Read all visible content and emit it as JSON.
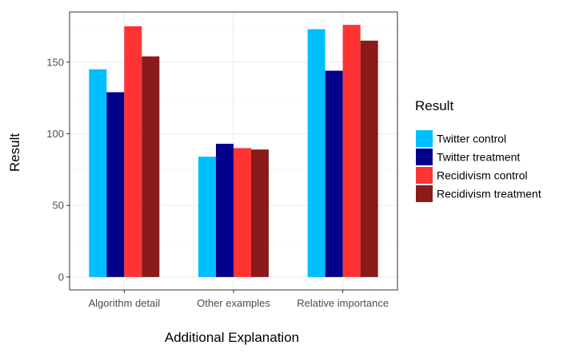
{
  "chart_data": {
    "type": "bar",
    "categories": [
      "Algorithm detail",
      "Other examples",
      "Relative importance"
    ],
    "series": [
      {
        "name": "Twitter control",
        "values": [
          145,
          84,
          173
        ]
      },
      {
        "name": "Twitter treatment",
        "values": [
          129,
          93,
          144
        ]
      },
      {
        "name": "Recidivism control",
        "values": [
          175,
          90,
          176
        ]
      },
      {
        "name": "Recidivism treatment",
        "values": [
          154,
          89,
          165
        ]
      }
    ],
    "xlabel": "Additional Explanation",
    "ylabel": "Result",
    "yticks": [
      0,
      50,
      100,
      150
    ],
    "ylim": [
      -9,
      185
    ],
    "grid": true,
    "legend": {
      "title": "Result",
      "position": "right"
    },
    "colors": [
      "#00bfff",
      "#00008b",
      "#ff3333",
      "#8b1a1a"
    ]
  }
}
